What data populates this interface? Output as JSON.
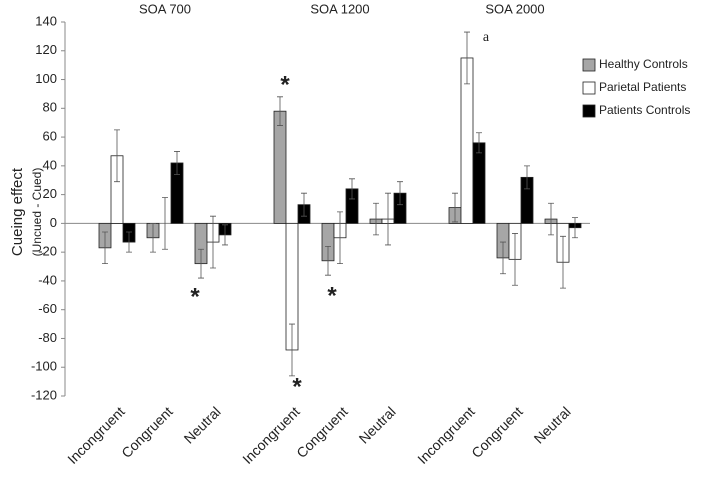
{
  "chart_data": {
    "type": "bar",
    "ylabel": [
      "Cueing effect",
      "(Uncued - Cued)"
    ],
    "groups": [
      "SOA 700",
      "SOA 1200",
      "SOA 2000"
    ],
    "categories": [
      "Incongruent",
      "Congruent",
      "Neutral",
      "Incongruent",
      "Congruent",
      "Neutral",
      "Incongruent",
      "Congruent",
      "Neutral"
    ],
    "series": [
      {
        "name": "Healthy Controls",
        "color": "#a6a6a6",
        "values": [
          -17,
          -10,
          -28,
          78,
          -26,
          3,
          11,
          -24,
          3
        ],
        "errors": [
          11,
          10,
          10,
          10,
          10,
          11,
          10,
          11,
          11
        ]
      },
      {
        "name": "Parietal Patients",
        "color": "#ffffff",
        "values": [
          47,
          0,
          -13,
          -88,
          -10,
          3,
          115,
          -25,
          -27
        ],
        "errors": [
          18,
          18,
          18,
          18,
          18,
          18,
          18,
          18,
          18
        ]
      },
      {
        "name": "Patients Controls",
        "color": "#000000",
        "values": [
          -13,
          42,
          -8,
          13,
          24,
          21,
          56,
          32,
          -3
        ],
        "errors": [
          7,
          8,
          7,
          8,
          7,
          8,
          7,
          8,
          7
        ]
      }
    ],
    "annotations": [
      "*",
      "*",
      "*",
      "*",
      "a"
    ],
    "ylim": [
      -120,
      140
    ],
    "yticks": [
      -120,
      -100,
      -80,
      -60,
      -40,
      -20,
      0,
      20,
      40,
      60,
      80,
      100,
      120,
      140
    ],
    "legend": "right"
  }
}
